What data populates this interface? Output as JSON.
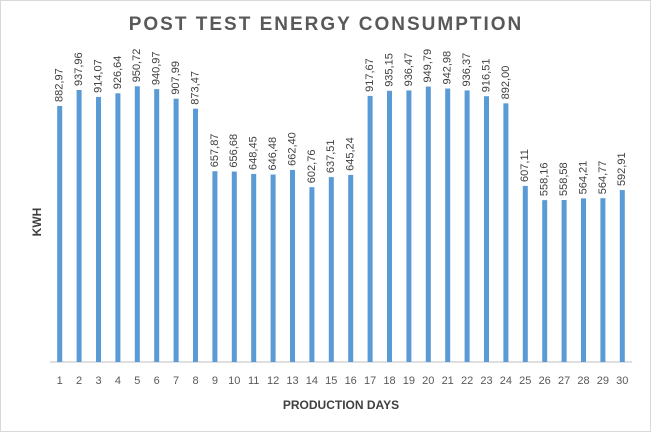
{
  "chart_data": {
    "type": "bar",
    "title": "POST TEST ENERGY CONSUMPTION",
    "x_label": "PRODUCTION DAYS",
    "y_label": "KWH",
    "categories": [
      "1",
      "2",
      "3",
      "4",
      "5",
      "6",
      "7",
      "8",
      "9",
      "10",
      "11",
      "12",
      "13",
      "14",
      "15",
      "16",
      "17",
      "18",
      "19",
      "20",
      "21",
      "22",
      "23",
      "24",
      "25",
      "26",
      "27",
      "28",
      "29",
      "30"
    ],
    "values": [
      882.97,
      937.96,
      914.07,
      926.64,
      950.72,
      940.97,
      907.99,
      873.47,
      657.87,
      656.68,
      648.45,
      646.48,
      662.4,
      602.76,
      637.51,
      645.24,
      917.67,
      935.15,
      936.47,
      949.79,
      942.98,
      936.37,
      916.51,
      892.0,
      607.11,
      558.16,
      558.58,
      564.21,
      564.77,
      592.91
    ],
    "value_labels": [
      "882,97",
      "937,96",
      "914,07",
      "926,64",
      "950,72",
      "940,97",
      "907,99",
      "873,47",
      "657,87",
      "656,68",
      "648,45",
      "646,48",
      "662,40",
      "602,76",
      "637,51",
      "645,24",
      "917,67",
      "935,15",
      "936,47",
      "949,79",
      "942,98",
      "936,37",
      "916,51",
      "892,00",
      "607,11",
      "558,16",
      "558,58",
      "564,21",
      "564,77",
      "592,91"
    ],
    "color": "#5b9bd5",
    "ylim": [
      0,
      1000
    ]
  }
}
